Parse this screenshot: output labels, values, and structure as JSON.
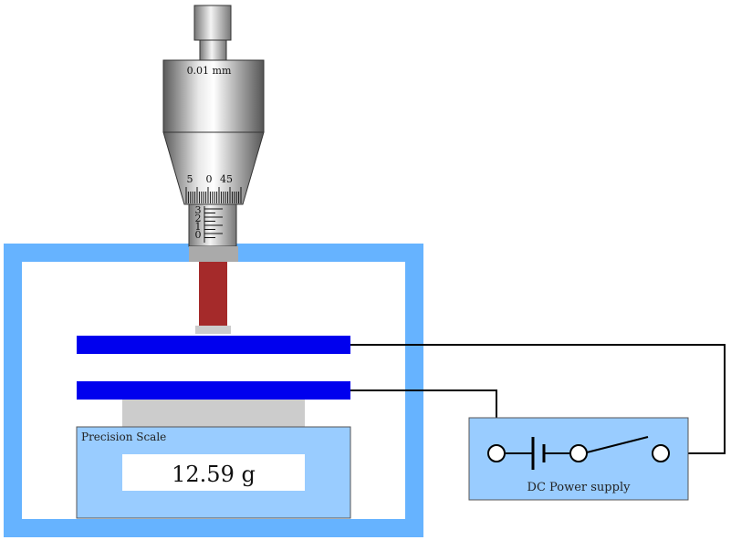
{
  "micrometer": {
    "resolution_label": "0.01 mm",
    "thimble_ticks": [
      "5",
      "0",
      "45"
    ],
    "sleeve_ticks": [
      "3",
      "2",
      "1",
      "0"
    ]
  },
  "scale": {
    "label": "Precision Scale",
    "reading": "12.59 g"
  },
  "power_supply": {
    "label": "DC Power supply"
  },
  "colors": {
    "chamber": "#66b3ff",
    "plate": "#0000ee",
    "scale_body": "#99ccff",
    "rod": "#a52a2a",
    "platform": "#cccccc"
  }
}
